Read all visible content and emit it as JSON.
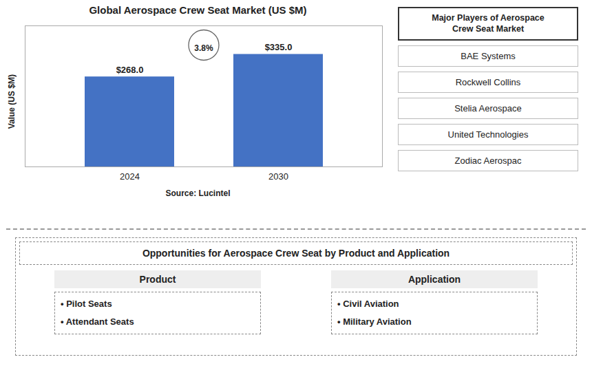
{
  "chart_data": {
    "type": "bar",
    "title": "Global Aerospace Crew Seat Market (US $M)",
    "categories": [
      "2024",
      "2030"
    ],
    "values": [
      268.0,
      335.0
    ],
    "value_labels": [
      "$268.0",
      "$335.0"
    ],
    "data_labels": true,
    "color": "#4472c4",
    "ylabel": "Value (US $M)",
    "ylim": [
      0,
      420
    ],
    "tick_labels": "x",
    "grid": false,
    "annotation": "3.8%",
    "caption": "Source: Lucintel",
    "side_panel": {
      "title": "Major Players of Aerospace\nCrew Seat Market",
      "items": [
        "BAE Systems",
        "Rockwell Collins",
        "Stelia Aerospace",
        "United Technologies",
        "Zodiac Aerospac"
      ]
    },
    "bottom_panel": {
      "title": "Opportunities for Aerospace Crew Seat by Product and Application",
      "columns": [
        {
          "name": "Product",
          "items": [
            "• Pilot Seats",
            "• Attendant Seats"
          ]
        },
        {
          "name": "Application",
          "items": [
            "• Civil Aviation",
            "• Military Aviation"
          ]
        }
      ]
    }
  }
}
